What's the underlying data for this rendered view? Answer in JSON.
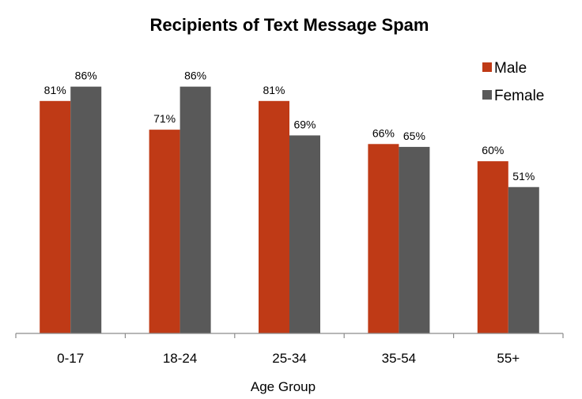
{
  "chart_data": {
    "type": "bar",
    "title": "Recipients of Text Message Spam",
    "xlabel": "Age Group",
    "ylabel": "",
    "categories": [
      "0-17",
      "18-24",
      "25-34",
      "35-54",
      "55+"
    ],
    "series": [
      {
        "name": "Male",
        "color": "#bf3a16",
        "values": [
          81,
          71,
          81,
          66,
          60
        ],
        "labels": [
          "81%",
          "71%",
          "81%",
          "66%",
          "60%"
        ]
      },
      {
        "name": "Female",
        "color": "#595959",
        "values": [
          86,
          86,
          69,
          65,
          51
        ],
        "labels": [
          "86%",
          "86%",
          "69%",
          "65%",
          "51%"
        ]
      }
    ],
    "ylim": [
      0,
      100
    ],
    "grid": false,
    "legend": "top-right",
    "y_axis_visible": false
  }
}
